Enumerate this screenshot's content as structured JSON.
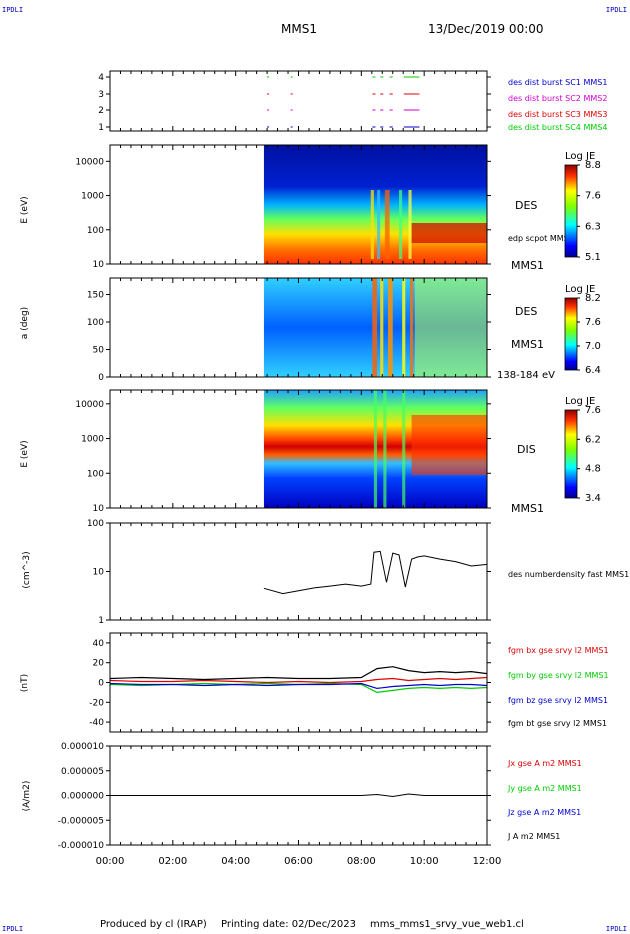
{
  "header": {
    "corner_tl": "IPDLI",
    "corner_tr": "IPDLI",
    "corner_bl": "IPDLI",
    "corner_br": "IPDLI",
    "spacecraft": "MMS1",
    "date": "13/Dec/2019 00:00"
  },
  "footer": {
    "produced_by": "Produced by cl (IRAP)",
    "printing_date": "Printing date: 02/Dec/2023",
    "filename": "mms_mms1_srvy_vue_web1.cl"
  },
  "colors": {
    "sc1": "#0000cc",
    "sc2": "#cc00cc",
    "sc3": "#dd0000",
    "sc4": "#00cc00",
    "bx": "#dd0000",
    "by": "#00cc00",
    "bz": "#0000cc",
    "bt": "#000000"
  },
  "chart_data": [
    {
      "id": "burst",
      "type": "scatter",
      "ylabel": "",
      "ylim": [
        0.5,
        4.5
      ],
      "yticks": [
        "1",
        "2",
        "3",
        "4"
      ],
      "legend": [
        {
          "text": "des dist burst SC1 MMS1",
          "color": "#0000cc"
        },
        {
          "text": "des dist burst SC2 MMS2",
          "color": "#cc00cc"
        },
        {
          "text": "des dist burst SC3 MMS3",
          "color": "#dd0000"
        },
        {
          "text": "des dist burst SC4 MMS4",
          "color": "#00cc00"
        }
      ],
      "intervals_hours": [
        [
          5.0,
          5.05
        ],
        [
          5.75,
          5.8
        ],
        [
          8.35,
          8.45
        ],
        [
          8.6,
          8.7
        ],
        [
          8.9,
          9.0
        ],
        [
          9.35,
          9.85
        ]
      ]
    },
    {
      "id": "des_energy",
      "type": "heatmap",
      "ylabel": "E (eV)",
      "yscale": "log",
      "ylim": [
        10,
        30000
      ],
      "yticks": [
        "10",
        "100",
        "1000",
        "10000"
      ],
      "labels": [
        "DES",
        "edp scpot MMS1",
        "MMS1"
      ],
      "colorbar": {
        "title": "Log JE",
        "ticks": [
          "8.8",
          "7.6",
          "6.3",
          "5.1"
        ]
      },
      "data_start_hour": 4.9
    },
    {
      "id": "des_pitch",
      "type": "heatmap",
      "ylabel": "a (deg)",
      "ylim": [
        0,
        180
      ],
      "yticks": [
        "0",
        "50",
        "100",
        "150"
      ],
      "labels": [
        "DES",
        "MMS1",
        "138-184 eV"
      ],
      "colorbar": {
        "title": "Log JE",
        "ticks": [
          "8.2",
          "7.6",
          "7.0",
          "6.4"
        ]
      },
      "data_start_hour": 4.9
    },
    {
      "id": "dis_energy",
      "type": "heatmap",
      "ylabel": "E (eV)",
      "yscale": "log",
      "ylim": [
        10,
        25000
      ],
      "yticks": [
        "10",
        "100",
        "1000",
        "10000"
      ],
      "labels": [
        "DIS",
        "MMS1"
      ],
      "colorbar": {
        "title": "Log JE",
        "ticks": [
          "7.6",
          "6.2",
          "4.8",
          "3.4"
        ]
      },
      "data_start_hour": 4.9
    },
    {
      "id": "density",
      "type": "line",
      "ylabel": "(cm^-3)",
      "yscale": "log",
      "ylim": [
        1,
        100
      ],
      "yticks": [
        "1",
        "10",
        "100"
      ],
      "legend": [
        {
          "text": "des numberdensity fast MMS1",
          "color": "#000000"
        }
      ],
      "x": [
        4.9,
        5.5,
        6.0,
        6.5,
        7.0,
        7.5,
        8.0,
        8.3,
        8.4,
        8.6,
        8.8,
        9.0,
        9.2,
        9.4,
        9.6,
        9.8,
        10.0,
        10.5,
        11.0,
        11.5,
        12.0
      ],
      "y": [
        4.5,
        3.5,
        4.0,
        4.6,
        5.0,
        5.5,
        5.0,
        5.5,
        25.0,
        26.0,
        6.0,
        24.0,
        22.0,
        4.8,
        18.0,
        20.0,
        21.0,
        18.0,
        16.0,
        13.0,
        14.0
      ]
    },
    {
      "id": "bfield",
      "type": "line",
      "ylabel": "(nT)",
      "ylim": [
        -50,
        50
      ],
      "yticks": [
        "-40",
        "-20",
        "0",
        "20",
        "40"
      ],
      "legend": [
        {
          "text": "fgm bx gse srvy l2 MMS1",
          "color": "#dd0000"
        },
        {
          "text": "fgm by gse srvy l2 MMS1",
          "color": "#00cc00"
        },
        {
          "text": "fgm bz gse srvy l2 MMS1",
          "color": "#0000cc"
        },
        {
          "text": "fgm bt gse srvy l2 MMS1",
          "color": "#000000"
        }
      ],
      "x": [
        0,
        1,
        2,
        3,
        4,
        5,
        6,
        7,
        8,
        8.5,
        9,
        9.5,
        10,
        10.5,
        11,
        11.5,
        12
      ],
      "series": [
        {
          "name": "fgm bx gse srvy l2 MMS1",
          "values": [
            2,
            1,
            1,
            2,
            1,
            0,
            1,
            0,
            1,
            3,
            4,
            2,
            3,
            4,
            3,
            4,
            5
          ]
        },
        {
          "name": "fgm by gse srvy l2 MMS1",
          "values": [
            -2,
            -3,
            -2,
            -1,
            -2,
            -1,
            -2,
            -1,
            -2,
            -10,
            -8,
            -6,
            -5,
            -6,
            -5,
            -6,
            -5
          ]
        },
        {
          "name": "fgm bz gse srvy l2 MMS1",
          "values": [
            -1,
            -2,
            -2,
            -3,
            -2,
            -3,
            -2,
            -2,
            -1,
            -6,
            -4,
            -3,
            -2,
            -3,
            -2,
            -2,
            -3
          ]
        },
        {
          "name": "fgm bt gse srvy l2 MMS1",
          "values": [
            4,
            5,
            4,
            3,
            4,
            5,
            4,
            4,
            5,
            14,
            16,
            12,
            10,
            11,
            10,
            11,
            9
          ]
        }
      ]
    },
    {
      "id": "current",
      "type": "line",
      "ylabel": "(A/m2)",
      "ylim": [
        -1e-05,
        1e-05
      ],
      "yticks": [
        "-0.000010",
        "-0.000005",
        "0.000000",
        "0.000005",
        "0.000010"
      ],
      "legend": [
        {
          "text": "Jx gse A m2 MMS1",
          "color": "#dd0000"
        },
        {
          "text": "Jy gse A m2 MMS1",
          "color": "#00cc00"
        },
        {
          "text": "Jz gse A m2 MMS1",
          "color": "#0000cc"
        },
        {
          "text": "J A m2 MMS1",
          "color": "#000000"
        }
      ],
      "x": [
        0,
        2,
        4,
        6,
        8,
        8.5,
        9,
        9.5,
        10,
        12
      ],
      "values": [
        0,
        0,
        0,
        0,
        0,
        2e-07,
        -2e-07,
        3e-07,
        0,
        0
      ]
    }
  ],
  "xaxis": {
    "tick_labels": [
      "00:00",
      "02:00",
      "04:00",
      "06:00",
      "08:00",
      "10:00",
      "12:00"
    ],
    "range_hours": [
      0,
      12
    ]
  }
}
